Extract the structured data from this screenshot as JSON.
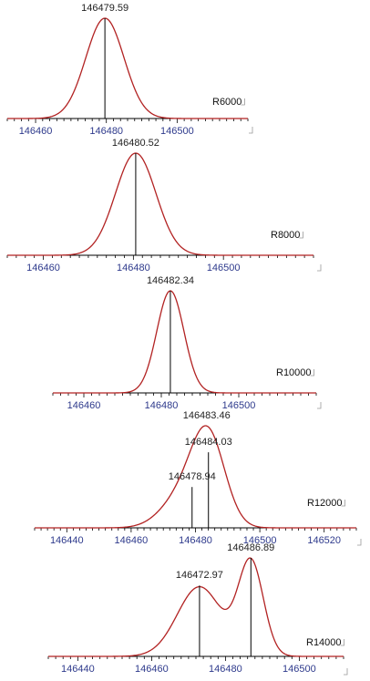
{
  "chart_data": [
    {
      "type": "line",
      "resolution_label": "R6000",
      "x_range": [
        146452,
        146520
      ],
      "ticks": [
        146460,
        146480,
        146500
      ],
      "gaussians": [
        {
          "center": 146479.59,
          "sigma": 5.4,
          "amp": 1.0
        }
      ],
      "peaks": [
        {
          "x": 146479.59,
          "label": "146479.59",
          "height": 1.0
        }
      ],
      "curve_color": "#b22222"
    },
    {
      "type": "line",
      "resolution_label": "R8000",
      "x_range": [
        146452,
        146520
      ],
      "ticks": [
        146460,
        146480,
        146500
      ],
      "gaussians": [
        {
          "center": 146480.52,
          "sigma": 4.5,
          "amp": 1.0
        }
      ],
      "peaks": [
        {
          "x": 146480.52,
          "label": "146480.52",
          "height": 1.0
        }
      ],
      "curve_color": "#b22222"
    },
    {
      "type": "line",
      "resolution_label": "R10000",
      "x_range": [
        146452,
        146520
      ],
      "ticks": [
        146460,
        146480,
        146500
      ],
      "gaussians": [
        {
          "center": 146482.34,
          "sigma": 3.5,
          "amp": 1.0
        }
      ],
      "peaks": [
        {
          "x": 146482.34,
          "label": "146482.34",
          "height": 1.0
        }
      ],
      "curve_color": "#b22222"
    },
    {
      "type": "line",
      "resolution_label": "R12000",
      "x_range": [
        146430,
        146530
      ],
      "ticks": [
        146440,
        146460,
        146480,
        146500,
        146520
      ],
      "gaussians": [
        {
          "center": 146484.03,
          "sigma": 5.2,
          "amp": 0.92
        },
        {
          "center": 146476.0,
          "sigma": 6.5,
          "amp": 0.33
        }
      ],
      "peaks": [
        {
          "x": 146483.46,
          "label": "146483.46",
          "height": 1.0,
          "line": false
        },
        {
          "x": 146484.03,
          "label": "146484.03",
          "height": 0.74
        },
        {
          "x": 146478.94,
          "label": "146478.94",
          "height": 0.4
        }
      ],
      "curve_color": "#b22222"
    },
    {
      "type": "line",
      "resolution_label": "R14000",
      "x_range": [
        146432,
        146512
      ],
      "ticks": [
        146440,
        146460,
        146480,
        146500
      ],
      "gaussians": [
        {
          "center": 146472.97,
          "sigma": 6.0,
          "amp": 0.7
        },
        {
          "center": 146486.89,
          "sigma": 3.4,
          "amp": 0.94
        }
      ],
      "peaks": [
        {
          "x": 146472.97,
          "label": "146472.97",
          "height": 0.72
        },
        {
          "x": 146486.89,
          "label": "146486.89",
          "height": 1.0
        }
      ],
      "curve_color": "#b22222"
    }
  ]
}
